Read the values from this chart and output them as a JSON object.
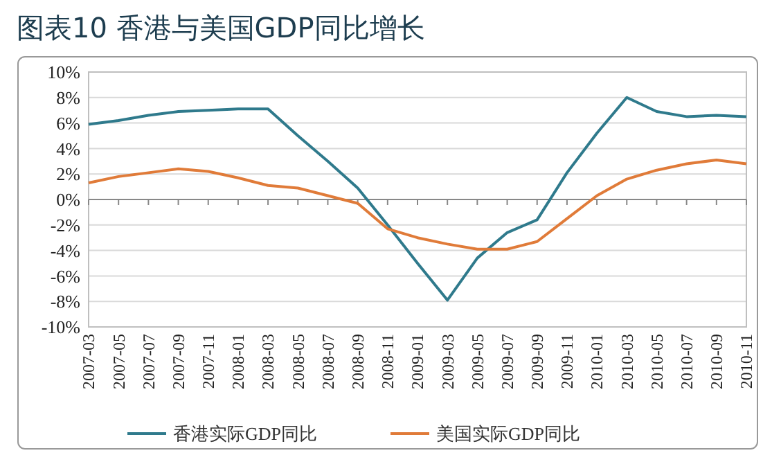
{
  "chart_data": {
    "type": "line",
    "title": "图表10  香港与美国GDP同比增长",
    "categories": [
      "2007-03",
      "2007-05",
      "2007-07",
      "2007-09",
      "2007-11",
      "2008-01",
      "2008-03",
      "2008-05",
      "2008-07",
      "2008-09",
      "2008-11",
      "2009-01",
      "2009-03",
      "2009-05",
      "2009-07",
      "2009-09",
      "2009-11",
      "2010-01",
      "2010-03",
      "2010-05",
      "2010-07",
      "2010-09",
      "2010-11"
    ],
    "series": [
      {
        "name": "香港实际GDP同比",
        "color": "#2f7a8c",
        "values": [
          5.9,
          6.2,
          6.6,
          6.9,
          7.0,
          7.1,
          7.1,
          5.0,
          3.0,
          0.9,
          -2.0,
          -5.0,
          -7.9,
          -4.6,
          -2.6,
          -1.6,
          2.1,
          5.2,
          8.0,
          6.9,
          6.5,
          6.6,
          6.5
        ]
      },
      {
        "name": "美国实际GDP同比",
        "color": "#e07b39",
        "values": [
          1.3,
          1.8,
          2.1,
          2.4,
          2.2,
          1.7,
          1.1,
          0.9,
          0.3,
          -0.3,
          -2.3,
          -3.0,
          -3.5,
          -3.9,
          -3.9,
          -3.3,
          -1.5,
          0.3,
          1.6,
          2.3,
          2.8,
          3.1,
          2.8
        ]
      }
    ],
    "ylim": [
      -10,
      10
    ],
    "yticks": [
      {
        "value": 10,
        "label": "10%"
      },
      {
        "value": 8,
        "label": "8%"
      },
      {
        "value": 6,
        "label": "6%"
      },
      {
        "value": 4,
        "label": "4%"
      },
      {
        "value": 2,
        "label": "2%"
      },
      {
        "value": 0,
        "label": "0%"
      },
      {
        "value": -2,
        "label": "-2%"
      },
      {
        "value": -4,
        "label": "-4%"
      },
      {
        "value": -6,
        "label": "-6%"
      },
      {
        "value": -8,
        "label": "-8%"
      },
      {
        "value": -10,
        "label": "-10%"
      }
    ],
    "grid": "y",
    "legend": "bottom",
    "marker": "none",
    "line_style": "solid"
  }
}
